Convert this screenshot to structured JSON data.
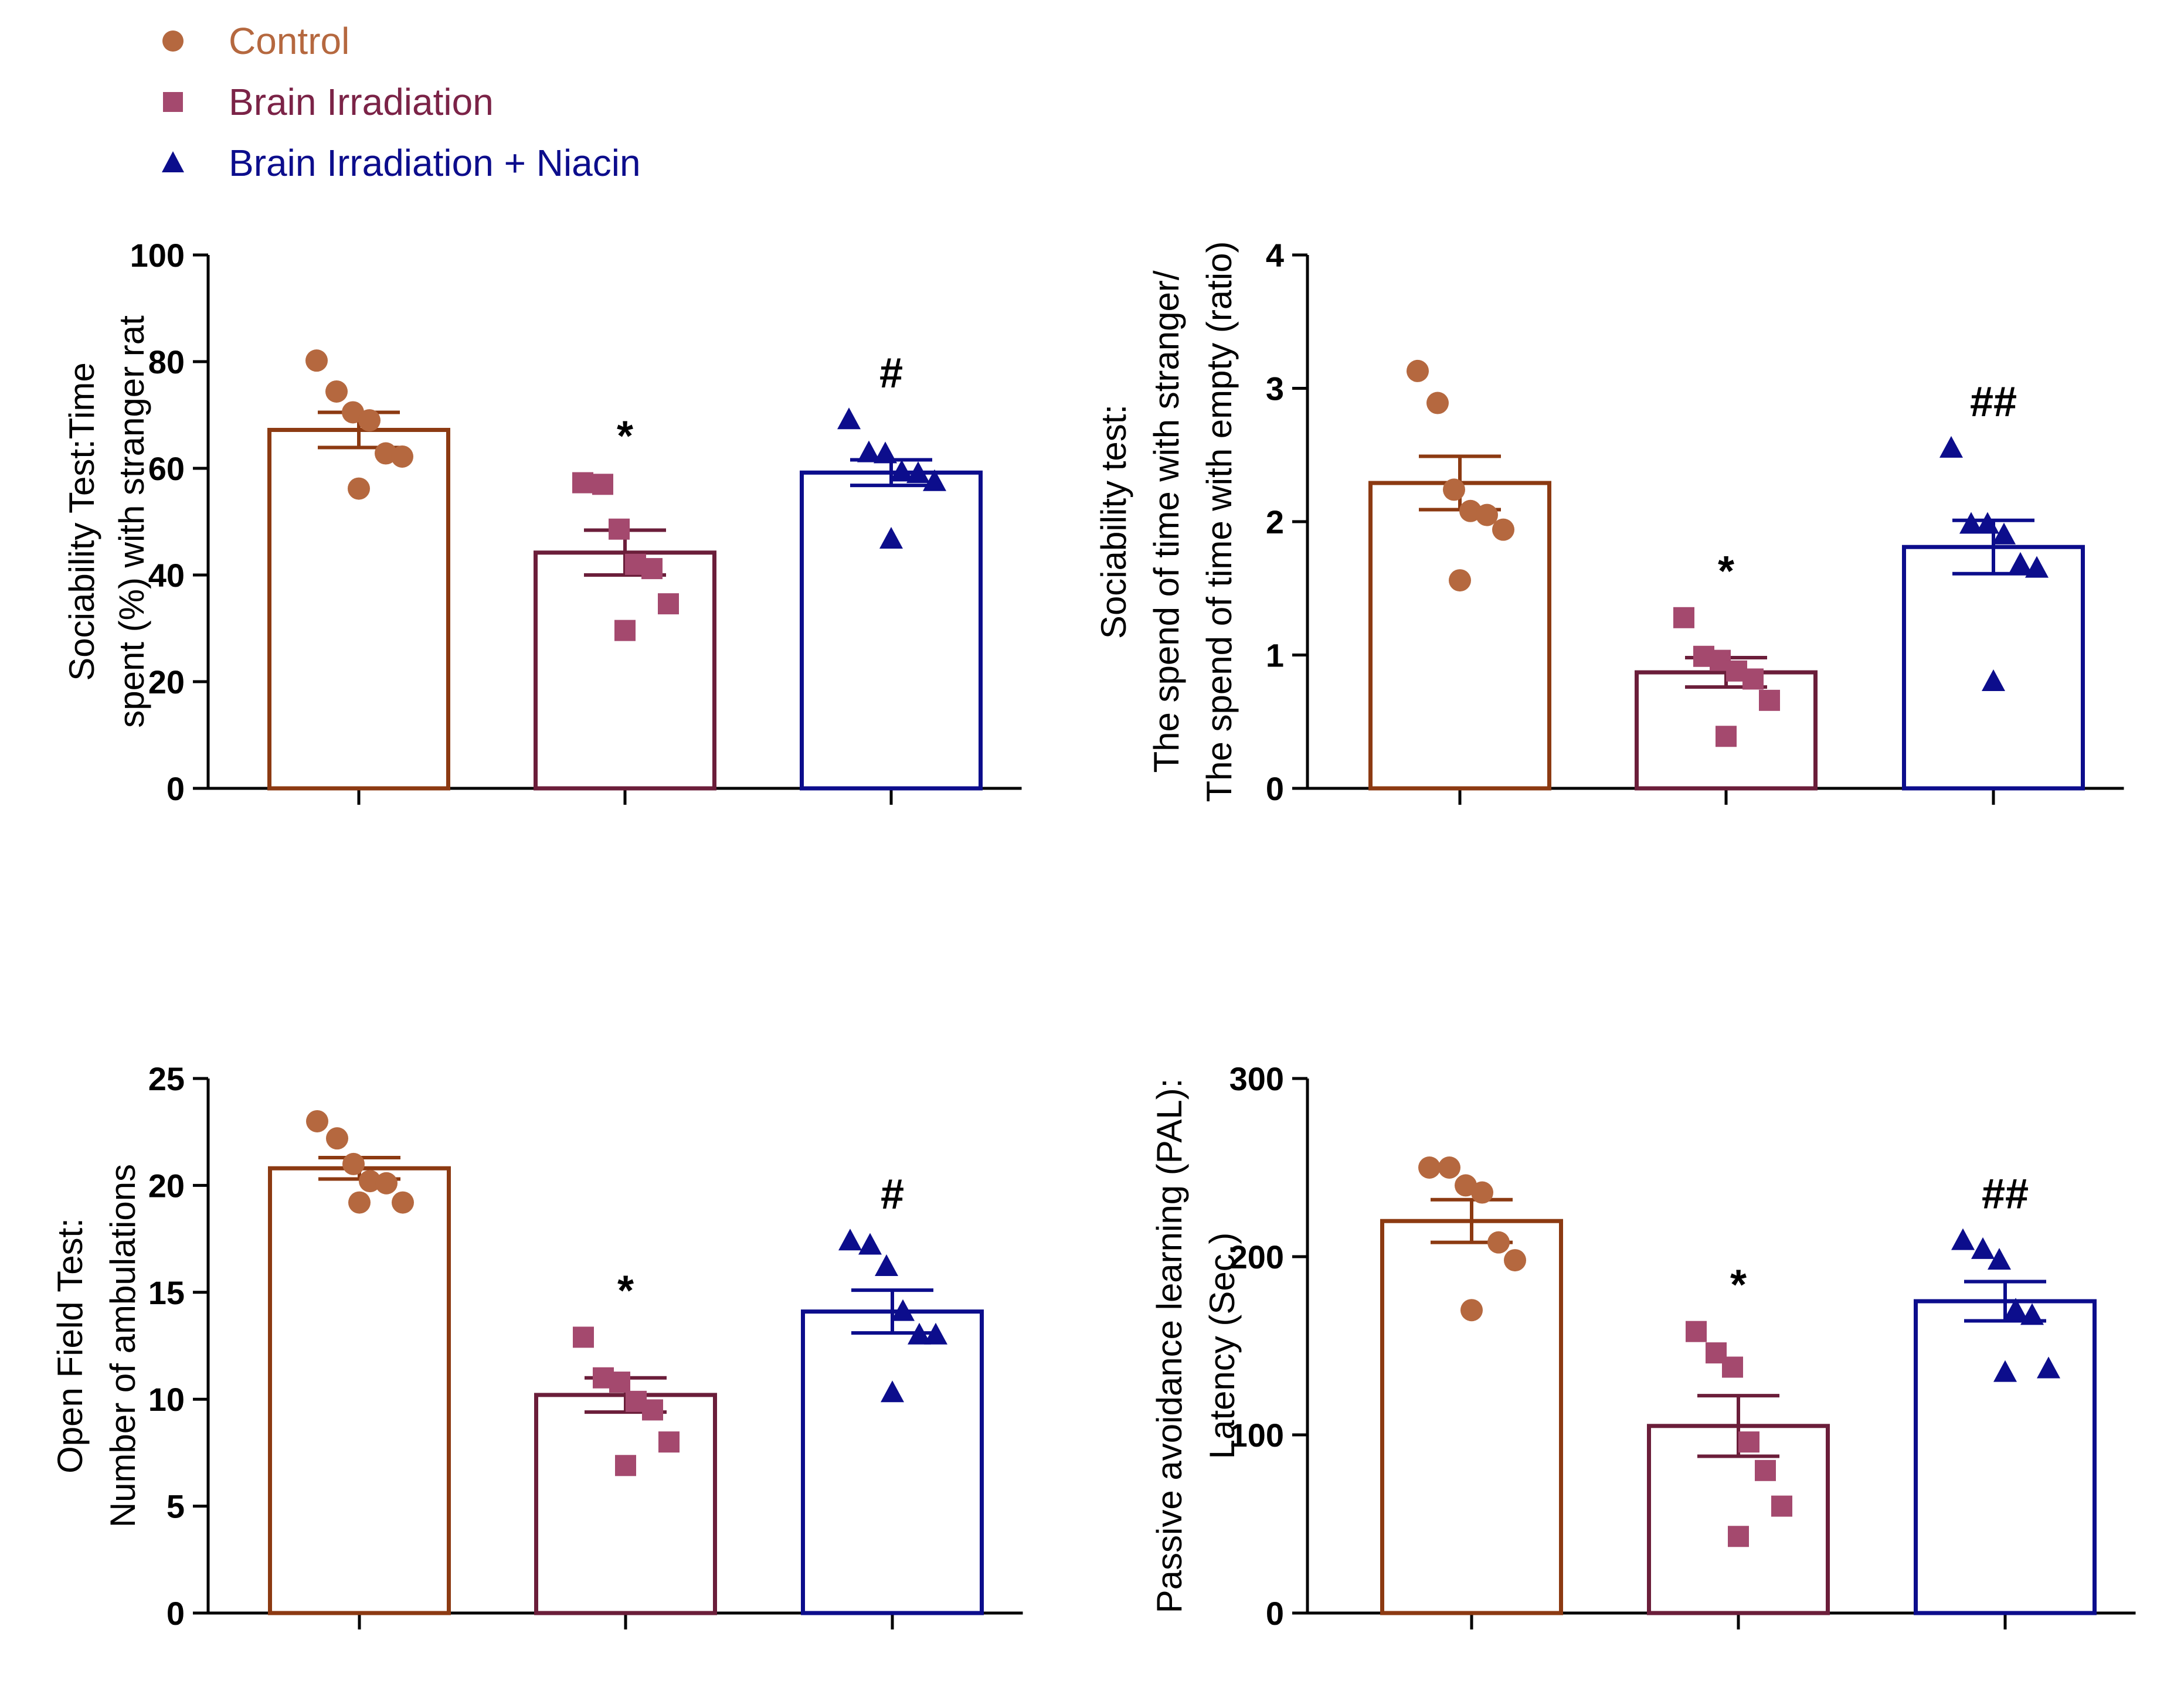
{
  "legend": {
    "items": [
      {
        "label": "Control",
        "color": "#B5683F",
        "marker": "circle"
      },
      {
        "label": "Brain Irradiation",
        "color": "#7B2347",
        "marker": "square"
      },
      {
        "label": "Brain Irradiation + Niacin",
        "color": "#0C0D8C",
        "marker": "triangle"
      }
    ]
  },
  "colors": {
    "control_bar": "#8C3A12",
    "control_point": "#B5683F",
    "irradiation_bar": "#6B1E3A",
    "irradiation_point": "#A4496E",
    "niacin_bar": "#0C0D8C",
    "niacin_point": "#0C0D8C",
    "axis": "#000000"
  },
  "chart_data": [
    {
      "type": "bar",
      "ylabel_lines": [
        "Sociability Test:Time",
        "spent (%) with stranger rat"
      ],
      "ylim": [
        0,
        100
      ],
      "yticks": [
        0,
        20,
        40,
        60,
        80,
        100
      ],
      "yticklabels": [
        "0",
        "20",
        "40",
        "60",
        "80",
        "100"
      ],
      "categories": [
        "Control",
        "Brain Irradiation",
        "Brain Irradiation + Niacin"
      ],
      "values": [
        67.2,
        44.2,
        59.2
      ],
      "sem": [
        3.3,
        4.2,
        2.4
      ],
      "points": [
        [
          80.2,
          74.4,
          70.5,
          69.0,
          62.8,
          62.2,
          56.2
        ],
        [
          57.3,
          57.0,
          48.6,
          42.0,
          41.2,
          34.6,
          29.6
        ],
        [
          69.1,
          62.9,
          62.7,
          59.3,
          59.0,
          57.5,
          46.7
        ]
      ],
      "annotations": [
        "",
        "*",
        "#"
      ]
    },
    {
      "type": "bar",
      "ylabel_lines": [
        "Sociability test:",
        "The spend of time with stranger/",
        "The spend of time with empty (ratio)"
      ],
      "ylim": [
        0,
        4
      ],
      "yticks": [
        0,
        1,
        2,
        3,
        4
      ],
      "yticklabels": [
        "0",
        "1",
        "2",
        "3",
        "4"
      ],
      "categories": [
        "Control",
        "Brain Irradiation",
        "Brain Irradiation + Niacin"
      ],
      "values": [
        2.29,
        0.87,
        1.81
      ],
      "sem": [
        0.2,
        0.11,
        0.2
      ],
      "points": [
        [
          3.13,
          2.89,
          2.24,
          2.08,
          2.05,
          1.94,
          1.56
        ],
        [
          1.28,
          0.99,
          0.96,
          0.88,
          0.82,
          0.66,
          0.39
        ],
        [
          2.55,
          1.98,
          1.98,
          1.9,
          1.68,
          1.65,
          0.8
        ]
      ],
      "annotations": [
        "",
        "*",
        "##"
      ]
    },
    {
      "type": "bar",
      "ylabel_lines": [
        "Open Field Test:",
        "Number of ambulations"
      ],
      "ylim": [
        0,
        25
      ],
      "yticks": [
        0,
        5,
        10,
        15,
        20,
        25
      ],
      "yticklabels": [
        "0",
        "5",
        "10",
        "15",
        "20",
        "25"
      ],
      "categories": [
        "Control",
        "Brain Irradiation",
        "Brain Irradiation + Niacin"
      ],
      "values": [
        20.8,
        10.2,
        14.1
      ],
      "sem": [
        0.5,
        0.8,
        1.0
      ],
      "points": [
        [
          23.0,
          22.2,
          21.0,
          20.2,
          20.1,
          19.2,
          19.2
        ],
        [
          12.9,
          11.0,
          10.8,
          9.9,
          9.5,
          8.0,
          6.9
        ],
        [
          17.4,
          17.2,
          16.2,
          14.1,
          13.0,
          13.0,
          10.3
        ]
      ],
      "annotations": [
        "",
        "*",
        "#"
      ]
    },
    {
      "type": "bar",
      "ylabel_lines": [
        "Passive avoidance learning (PAL):",
        "Latency (Sec.)"
      ],
      "ylim": [
        0,
        300
      ],
      "yticks": [
        0,
        100,
        200,
        300
      ],
      "yticklabels": [
        "0",
        "100",
        "200",
        "300"
      ],
      "categories": [
        "Control",
        "Brain Irradiation",
        "Brain Irradiation + Niacin"
      ],
      "values": [
        220,
        105,
        175
      ],
      "sem": [
        12,
        17,
        11
      ],
      "points": [
        [
          250,
          250,
          240,
          236,
          208,
          198,
          170
        ],
        [
          158,
          146,
          138,
          96,
          80,
          60,
          43
        ],
        [
          209,
          204,
          198,
          170,
          167,
          137,
          135
        ]
      ],
      "annotations": [
        "",
        "*",
        "##"
      ]
    }
  ]
}
